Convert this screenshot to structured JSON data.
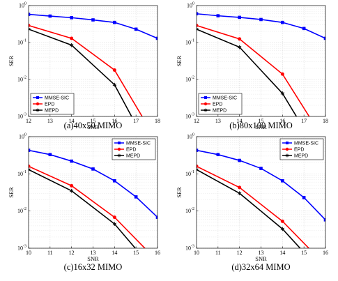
{
  "chart_data": [
    {
      "type": "line",
      "caption": "(a)40x50 MIMO",
      "xlabel": "SNR",
      "ylabel": "SER",
      "xlim": [
        12,
        18
      ],
      "ylim": [
        0.001,
        1
      ],
      "yscale": "log",
      "xticks": [
        "12",
        "13",
        "14",
        "15",
        "16",
        "17",
        "18"
      ],
      "yticks": [
        "10^0",
        "10^-1",
        "10^-2",
        "10^-3"
      ],
      "grid": true,
      "legend_position": "bottom-left",
      "series": [
        {
          "name": "MMSE-SIC",
          "color": "#0000ff",
          "marker": "square",
          "x": [
            12,
            13,
            14,
            15,
            16,
            17,
            18
          ],
          "y": [
            0.58,
            0.52,
            0.47,
            0.41,
            0.35,
            0.23,
            0.13
          ]
        },
        {
          "name": "EPD",
          "color": "#ff0000",
          "marker": "circle",
          "x": [
            12,
            14,
            16,
            18
          ],
          "y": [
            0.29,
            0.13,
            0.018,
            0.0002
          ]
        },
        {
          "name": "MEPD",
          "color": "#000000",
          "marker": "asterisk",
          "x": [
            12,
            14,
            16,
            18
          ],
          "y": [
            0.23,
            0.085,
            0.0072,
            5e-05
          ]
        }
      ]
    },
    {
      "type": "line",
      "caption": "(b)80x100 MIMO",
      "xlabel": "SNR",
      "ylabel": "SER",
      "xlim": [
        12,
        18
      ],
      "ylim": [
        0.001,
        1
      ],
      "yscale": "log",
      "xticks": [
        "12",
        "13",
        "14",
        "15",
        "16",
        "17",
        "18"
      ],
      "yticks": [
        "10^0",
        "10^-1",
        "10^-2",
        "10^-3"
      ],
      "grid": true,
      "legend_position": "bottom-left",
      "series": [
        {
          "name": "MMSE-SIC",
          "color": "#0000ff",
          "marker": "square",
          "x": [
            12,
            13,
            14,
            15,
            16,
            17,
            18
          ],
          "y": [
            0.6,
            0.53,
            0.48,
            0.42,
            0.35,
            0.24,
            0.13
          ]
        },
        {
          "name": "EPD",
          "color": "#ff0000",
          "marker": "circle",
          "x": [
            12,
            14,
            16,
            18
          ],
          "y": [
            0.29,
            0.125,
            0.014,
            0.0002
          ]
        },
        {
          "name": "MEPD",
          "color": "#000000",
          "marker": "asterisk",
          "x": [
            12,
            14,
            16,
            18
          ],
          "y": [
            0.23,
            0.075,
            0.0042,
            5e-05
          ]
        }
      ]
    },
    {
      "type": "line",
      "caption": "(c)16x32 MIMO",
      "xlabel": "SNR",
      "ylabel": "SER",
      "xlim": [
        10,
        16
      ],
      "ylim": [
        0.001,
        1
      ],
      "yscale": "log",
      "xticks": [
        "10",
        "11",
        "12",
        "13",
        "14",
        "15",
        "16"
      ],
      "yticks": [
        "10^0",
        "10^-1",
        "10^-2",
        "10^-3"
      ],
      "grid": true,
      "legend_position": "top-right",
      "series": [
        {
          "name": "MMSE-SIC",
          "color": "#0000ff",
          "marker": "square",
          "x": [
            10,
            11,
            12,
            13,
            14,
            15,
            16
          ],
          "y": [
            0.43,
            0.33,
            0.22,
            0.135,
            0.065,
            0.024,
            0.0068
          ]
        },
        {
          "name": "EPD",
          "color": "#ff0000",
          "marker": "circle",
          "x": [
            10,
            12,
            14,
            16
          ],
          "y": [
            0.16,
            0.048,
            0.0068,
            0.00045
          ]
        },
        {
          "name": "MEPD",
          "color": "#000000",
          "marker": "asterisk",
          "x": [
            10,
            12,
            14,
            16
          ],
          "y": [
            0.13,
            0.035,
            0.0045,
            0.0002
          ]
        }
      ]
    },
    {
      "type": "line",
      "caption": "(d)32x64 MIMO",
      "xlabel": "SNR",
      "ylabel": "SER",
      "xlim": [
        10,
        16
      ],
      "ylim": [
        0.001,
        1
      ],
      "yscale": "log",
      "xticks": [
        "10",
        "11",
        "12",
        "13",
        "14",
        "15",
        "16"
      ],
      "yticks": [
        "10^0",
        "10^-1",
        "10^-2",
        "10^-3"
      ],
      "grid": true,
      "legend_position": "top-right",
      "series": [
        {
          "name": "MMSE-SIC",
          "color": "#0000ff",
          "marker": "square",
          "x": [
            10,
            11,
            12,
            13,
            14,
            15,
            16
          ],
          "y": [
            0.43,
            0.33,
            0.23,
            0.14,
            0.065,
            0.023,
            0.0058
          ]
        },
        {
          "name": "EPD",
          "color": "#ff0000",
          "marker": "circle",
          "x": [
            10,
            12,
            14,
            16
          ],
          "y": [
            0.16,
            0.043,
            0.0053,
            0.00035
          ]
        },
        {
          "name": "MEPD",
          "color": "#000000",
          "marker": "asterisk",
          "x": [
            10,
            12,
            14,
            16
          ],
          "y": [
            0.13,
            0.03,
            0.0033,
            0.00018
          ]
        }
      ]
    }
  ]
}
